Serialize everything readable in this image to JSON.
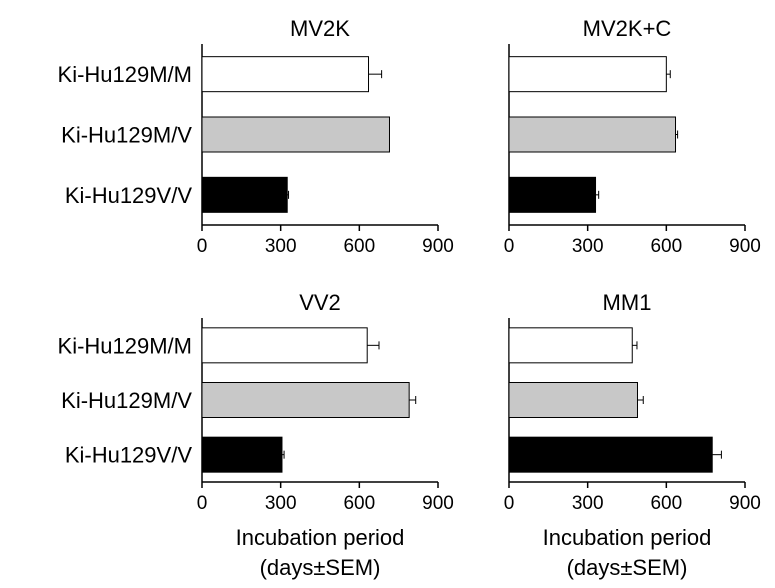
{
  "chart_data": [
    {
      "type": "bar",
      "orientation": "horizontal",
      "title": "MV2K",
      "categories": [
        "Ki-Hu129M/M",
        "Ki-Hu129M/V",
        "Ki-Hu129V/V"
      ],
      "values": [
        635,
        715,
        325
      ],
      "errors": [
        50,
        0,
        5
      ],
      "colors": [
        "#ffffff",
        "#c8c8c8",
        "#000000"
      ],
      "xlim": [
        0,
        900
      ],
      "xticks": [
        "0",
        "300",
        "600",
        "900"
      ],
      "xlabel": ""
    },
    {
      "type": "bar",
      "orientation": "horizontal",
      "title": "MV2K+C",
      "categories": [
        "Ki-Hu129M/M",
        "Ki-Hu129M/V",
        "Ki-Hu129V/V"
      ],
      "values": [
        600,
        635,
        330
      ],
      "errors": [
        15,
        8,
        12
      ],
      "colors": [
        "#ffffff",
        "#c8c8c8",
        "#000000"
      ],
      "xlim": [
        0,
        900
      ],
      "xticks": [
        "0",
        "300",
        "600",
        "900"
      ],
      "xlabel": ""
    },
    {
      "type": "bar",
      "orientation": "horizontal",
      "title": "VV2",
      "categories": [
        "Ki-Hu129M/M",
        "Ki-Hu129M/V",
        "Ki-Hu129V/V"
      ],
      "values": [
        630,
        790,
        305
      ],
      "errors": [
        45,
        25,
        8
      ],
      "colors": [
        "#ffffff",
        "#c8c8c8",
        "#000000"
      ],
      "xlim": [
        0,
        900
      ],
      "xticks": [
        "0",
        "300",
        "600",
        "900"
      ],
      "xlabel": [
        "Incubation period",
        "(days±SEM)"
      ]
    },
    {
      "type": "bar",
      "orientation": "horizontal",
      "title": "MM1",
      "categories": [
        "Ki-Hu129M/M",
        "Ki-Hu129M/V",
        "Ki-Hu129V/V"
      ],
      "values": [
        470,
        490,
        775
      ],
      "errors": [
        18,
        22,
        35
      ],
      "colors": [
        "#ffffff",
        "#c8c8c8",
        "#000000"
      ],
      "xlim": [
        0,
        900
      ],
      "xticks": [
        "0",
        "300",
        "600",
        "900"
      ],
      "xlabel": [
        "Incubation period",
        "(days±SEM)"
      ]
    }
  ]
}
